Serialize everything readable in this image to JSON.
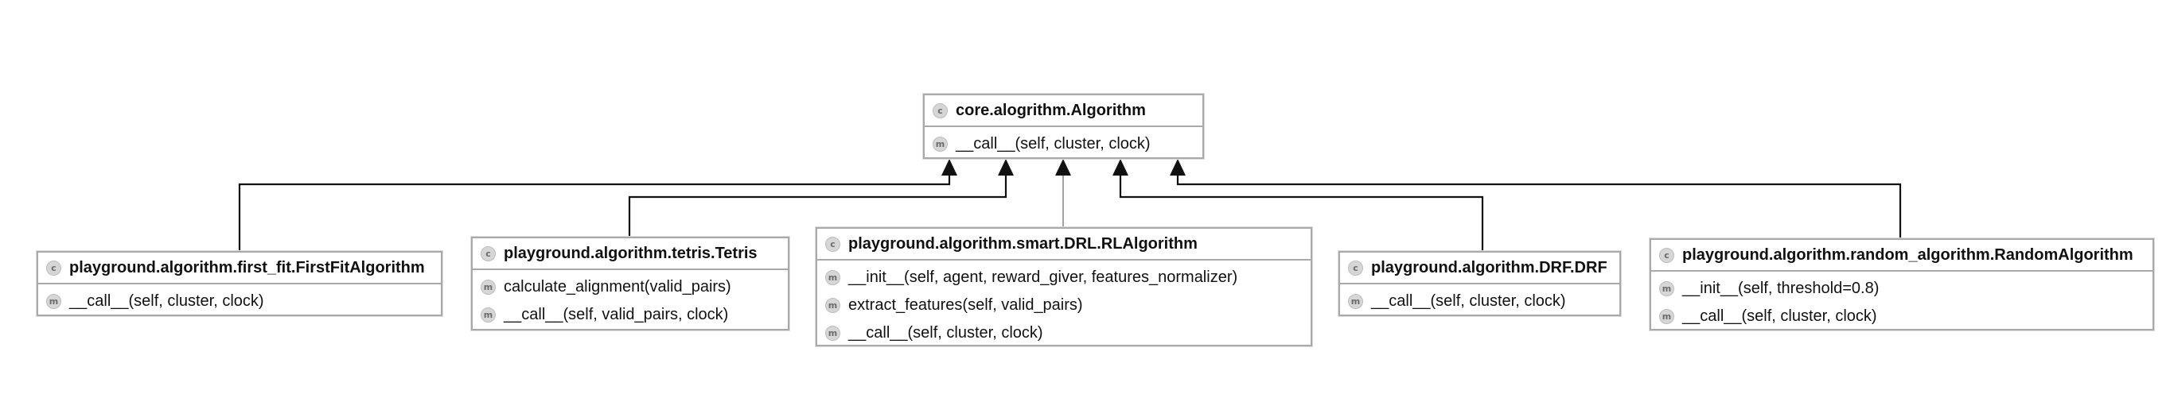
{
  "diagram": {
    "classes": [
      {
        "id": "algorithm",
        "name": "core.alogrithm.Algorithm",
        "badge": "c",
        "members": [
          {
            "badge": "m",
            "text": "__call__(self, cluster, clock)"
          }
        ]
      },
      {
        "id": "first_fit",
        "name": "playground.algorithm.first_fit.FirstFitAlgorithm",
        "badge": "c",
        "members": [
          {
            "badge": "m",
            "text": "__call__(self, cluster, clock)"
          }
        ]
      },
      {
        "id": "tetris",
        "name": "playground.algorithm.tetris.Tetris",
        "badge": "c",
        "members": [
          {
            "badge": "m",
            "text": "calculate_alignment(valid_pairs)"
          },
          {
            "badge": "m",
            "text": "__call__(self, valid_pairs, clock)"
          }
        ]
      },
      {
        "id": "rl",
        "name": "playground.algorithm.smart.DRL.RLAlgorithm",
        "badge": "c",
        "members": [
          {
            "badge": "m",
            "text": "__init__(self, agent, reward_giver, features_normalizer)"
          },
          {
            "badge": "m",
            "text": "extract_features(self, valid_pairs)"
          },
          {
            "badge": "m",
            "text": "__call__(self, cluster, clock)"
          }
        ]
      },
      {
        "id": "drf",
        "name": "playground.algorithm.DRF.DRF",
        "badge": "c",
        "members": [
          {
            "badge": "m",
            "text": "__call__(self, cluster, clock)"
          }
        ]
      },
      {
        "id": "random",
        "name": "playground.algorithm.random_algorithm.RandomAlgorithm",
        "badge": "c",
        "members": [
          {
            "badge": "m",
            "text": "__init__(self, threshold=0.8)"
          },
          {
            "badge": "m",
            "text": "__call__(self, cluster, clock)"
          }
        ]
      }
    ],
    "inheritance": [
      {
        "from": "first_fit",
        "to": "algorithm"
      },
      {
        "from": "tetris",
        "to": "algorithm"
      },
      {
        "from": "rl",
        "to": "algorithm"
      },
      {
        "from": "drf",
        "to": "algorithm"
      },
      {
        "from": "random",
        "to": "algorithm"
      }
    ],
    "colors": {
      "edge": "#111111",
      "edge_light": "#a0a0a0",
      "box_border": "#a9a9a9",
      "badge_fill": "#d6d6d6"
    }
  }
}
